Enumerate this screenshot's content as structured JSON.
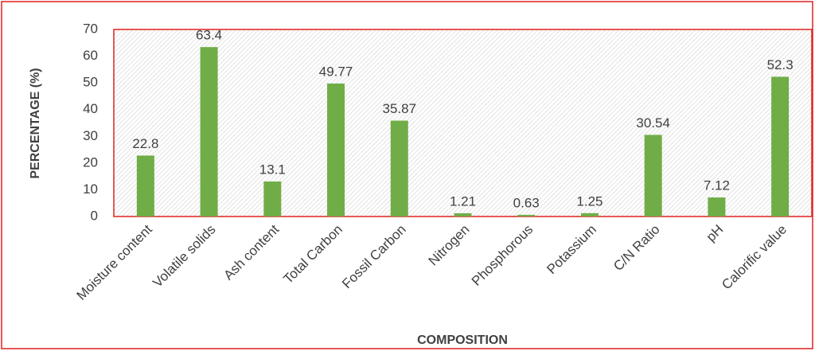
{
  "chart_data": {
    "type": "bar",
    "x_label": "COMPOSITION",
    "y_label": "PERCENTAGE (%)",
    "categories": [
      "Moisture content",
      "Volatile solids",
      "Ash content",
      "Total Carbon",
      "Fossil Carbon",
      "Nitrogen",
      "Phosphorous",
      "Potassium",
      "C/N Ratio",
      "pH",
      "Calorific value"
    ],
    "values": [
      22.8,
      63.4,
      13.1,
      49.77,
      35.87,
      1.21,
      0.63,
      1.25,
      30.54,
      7.12,
      52.3
    ],
    "color": "#70ad47",
    "ylim": [
      0,
      70
    ],
    "yticks": [
      0,
      10,
      20,
      30,
      40,
      50,
      60,
      70
    ],
    "grid": false
  }
}
